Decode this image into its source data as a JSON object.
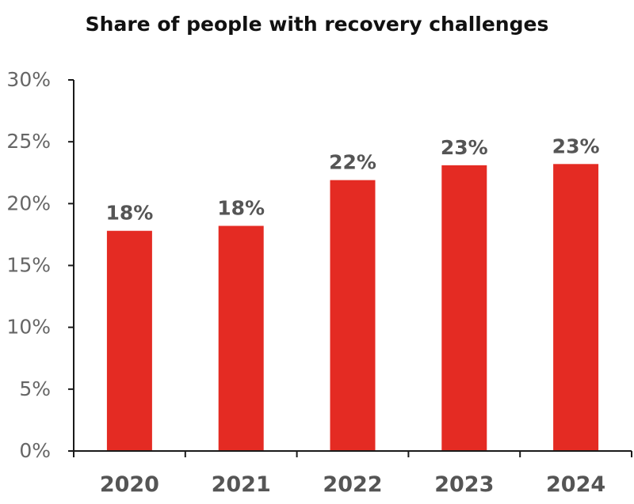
{
  "colors": {
    "bar": "#e42b23",
    "axis": "#1a1a1a",
    "tick_text": "#666666",
    "label_text": "#555555"
  },
  "chart_data": {
    "type": "bar",
    "title": "Share of people with recovery challenges",
    "categories": [
      "2020",
      "2021",
      "2022",
      "2023",
      "2024"
    ],
    "values": [
      17.8,
      18.2,
      21.9,
      23.1,
      23.2
    ],
    "data_labels": [
      "18%",
      "18%",
      "22%",
      "23%",
      "23%"
    ],
    "yticks": [
      0,
      5,
      10,
      15,
      20,
      25,
      30
    ],
    "ytick_labels": [
      "0%",
      "5%",
      "10%",
      "15%",
      "20%",
      "25%",
      "30%"
    ],
    "ylim": [
      0,
      30
    ],
    "xlabel": "",
    "ylabel": "",
    "grid": false,
    "legend": "none"
  }
}
